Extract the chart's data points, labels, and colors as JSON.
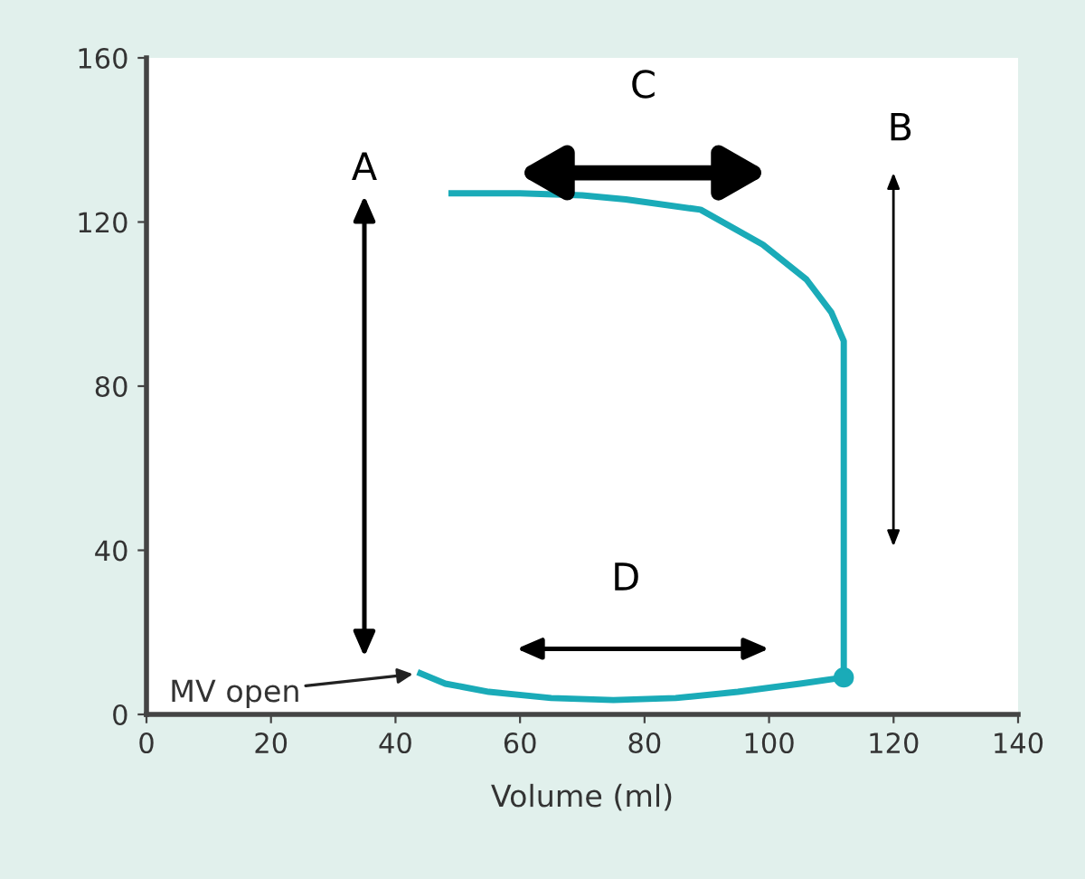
{
  "chart_data": {
    "type": "line",
    "xlabel": "Volume (ml)",
    "xlim": [
      0,
      140
    ],
    "xticks": [
      0,
      20,
      40,
      60,
      80,
      100,
      120,
      140
    ],
    "ylim": [
      0,
      160
    ],
    "yticks": [
      0,
      40,
      80,
      120,
      160
    ],
    "grid": false,
    "series": [
      {
        "color": "#1aabb8",
        "marker": "none",
        "x": [
          49,
          60,
          70,
          77,
          89,
          99,
          106,
          110,
          112,
          112,
          112,
          112,
          105,
          95,
          85,
          75,
          65,
          55,
          48,
          44
        ],
        "values": [
          127,
          127,
          126.5,
          125.5,
          123,
          114.5,
          106,
          98,
          91,
          60,
          30,
          9,
          7.5,
          5.5,
          4,
          3.5,
          4,
          5.5,
          7.5,
          10
        ]
      },
      {
        "type": "scatter",
        "color": "#1aabb8",
        "marker": "circle",
        "x": [
          112
        ],
        "values": [
          9
        ]
      }
    ],
    "annotations": [
      "A",
      "B",
      "C",
      "D",
      {
        "text": "MV open",
        "x": 44,
        "y": 10
      }
    ]
  }
}
